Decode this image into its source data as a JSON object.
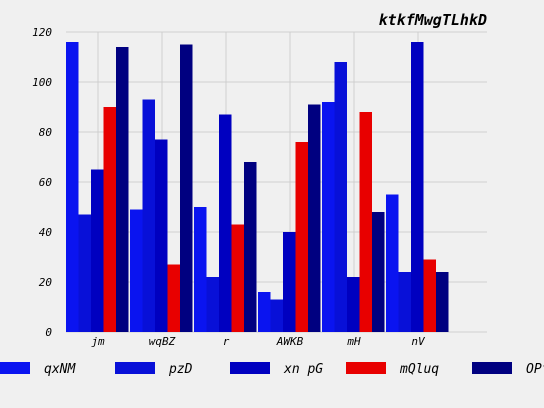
{
  "chart_data": {
    "type": "bar",
    "title": "ktkfMwgTLhkD",
    "xlabel": "",
    "ylabel": "",
    "categories": [
      "jm",
      "wqBZ",
      "r",
      "AWKB",
      "mH",
      "nV"
    ],
    "ylim": [
      0,
      120
    ],
    "yticks": [
      0,
      20,
      40,
      60,
      80,
      100,
      120
    ],
    "grid": true,
    "legend_position": "bottom",
    "series": [
      {
        "name": "qxNM",
        "color": "#0a14f0",
        "values": [
          116,
          49,
          50,
          16,
          92,
          55
        ]
      },
      {
        "name": "pzD",
        "color": "#0810d8",
        "values": [
          47,
          93,
          22,
          13,
          108,
          24
        ]
      },
      {
        "name": "xn pG",
        "color": "#0000c0",
        "values": [
          65,
          77,
          87,
          40,
          22,
          116
        ]
      },
      {
        "name": "mQluq",
        "color": "#e80000",
        "values": [
          90,
          27,
          43,
          76,
          88,
          29
        ]
      },
      {
        "name": "OPf",
        "color": "#000080",
        "values": [
          114,
          115,
          68,
          91,
          48,
          24
        ]
      }
    ]
  }
}
